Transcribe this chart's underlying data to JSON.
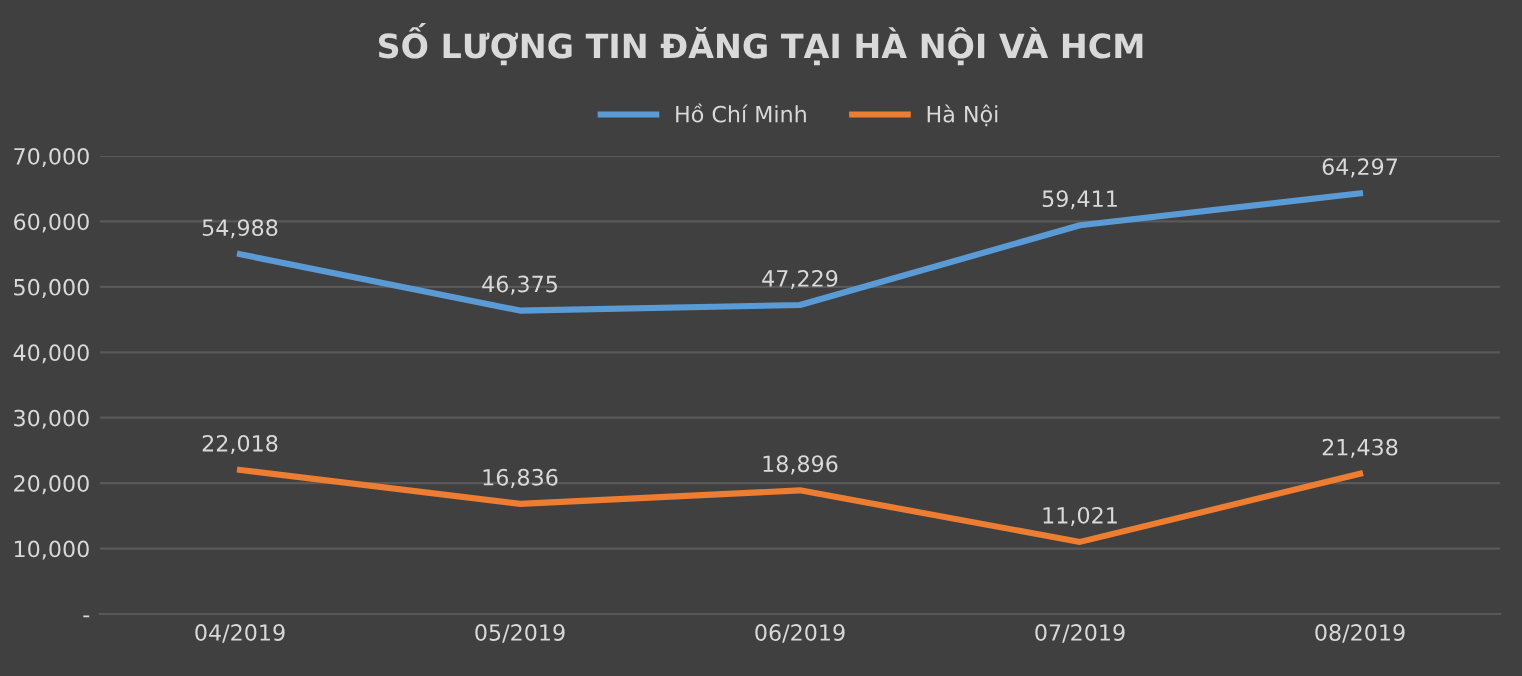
{
  "chart_data": {
    "type": "line",
    "title": "SỐ LƯỢNG TIN ĐĂNG TẠI HÀ NỘI VÀ HCM",
    "categories": [
      "04/2019",
      "05/2019",
      "06/2019",
      "07/2019",
      "08/2019"
    ],
    "series": [
      {
        "name": "Hồ Chí Minh",
        "color": "#5b9bd5",
        "values": [
          54988,
          46375,
          47229,
          59411,
          64297
        ],
        "value_labels": [
          "54,988",
          "46,375",
          "47,229",
          "59,411",
          "64,297"
        ]
      },
      {
        "name": "Hà Nội",
        "color": "#ed7d31",
        "values": [
          22018,
          16836,
          18896,
          11021,
          21438
        ],
        "value_labels": [
          "22,018",
          "16,836",
          "18,896",
          "11,021",
          "21,438"
        ]
      }
    ],
    "ylim": [
      0,
      70000
    ],
    "yticks": [
      {
        "value": 0,
        "label": "-"
      },
      {
        "value": 10000,
        "label": "10,000"
      },
      {
        "value": 20000,
        "label": "20,000"
      },
      {
        "value": 30000,
        "label": "30,000"
      },
      {
        "value": 40000,
        "label": "40,000"
      },
      {
        "value": 50000,
        "label": "50,000"
      },
      {
        "value": 60000,
        "label": "60,000"
      },
      {
        "value": 70000,
        "label": "70,000"
      }
    ],
    "grid": "y",
    "legend": "top",
    "marker": "none",
    "line_style": "solid"
  }
}
